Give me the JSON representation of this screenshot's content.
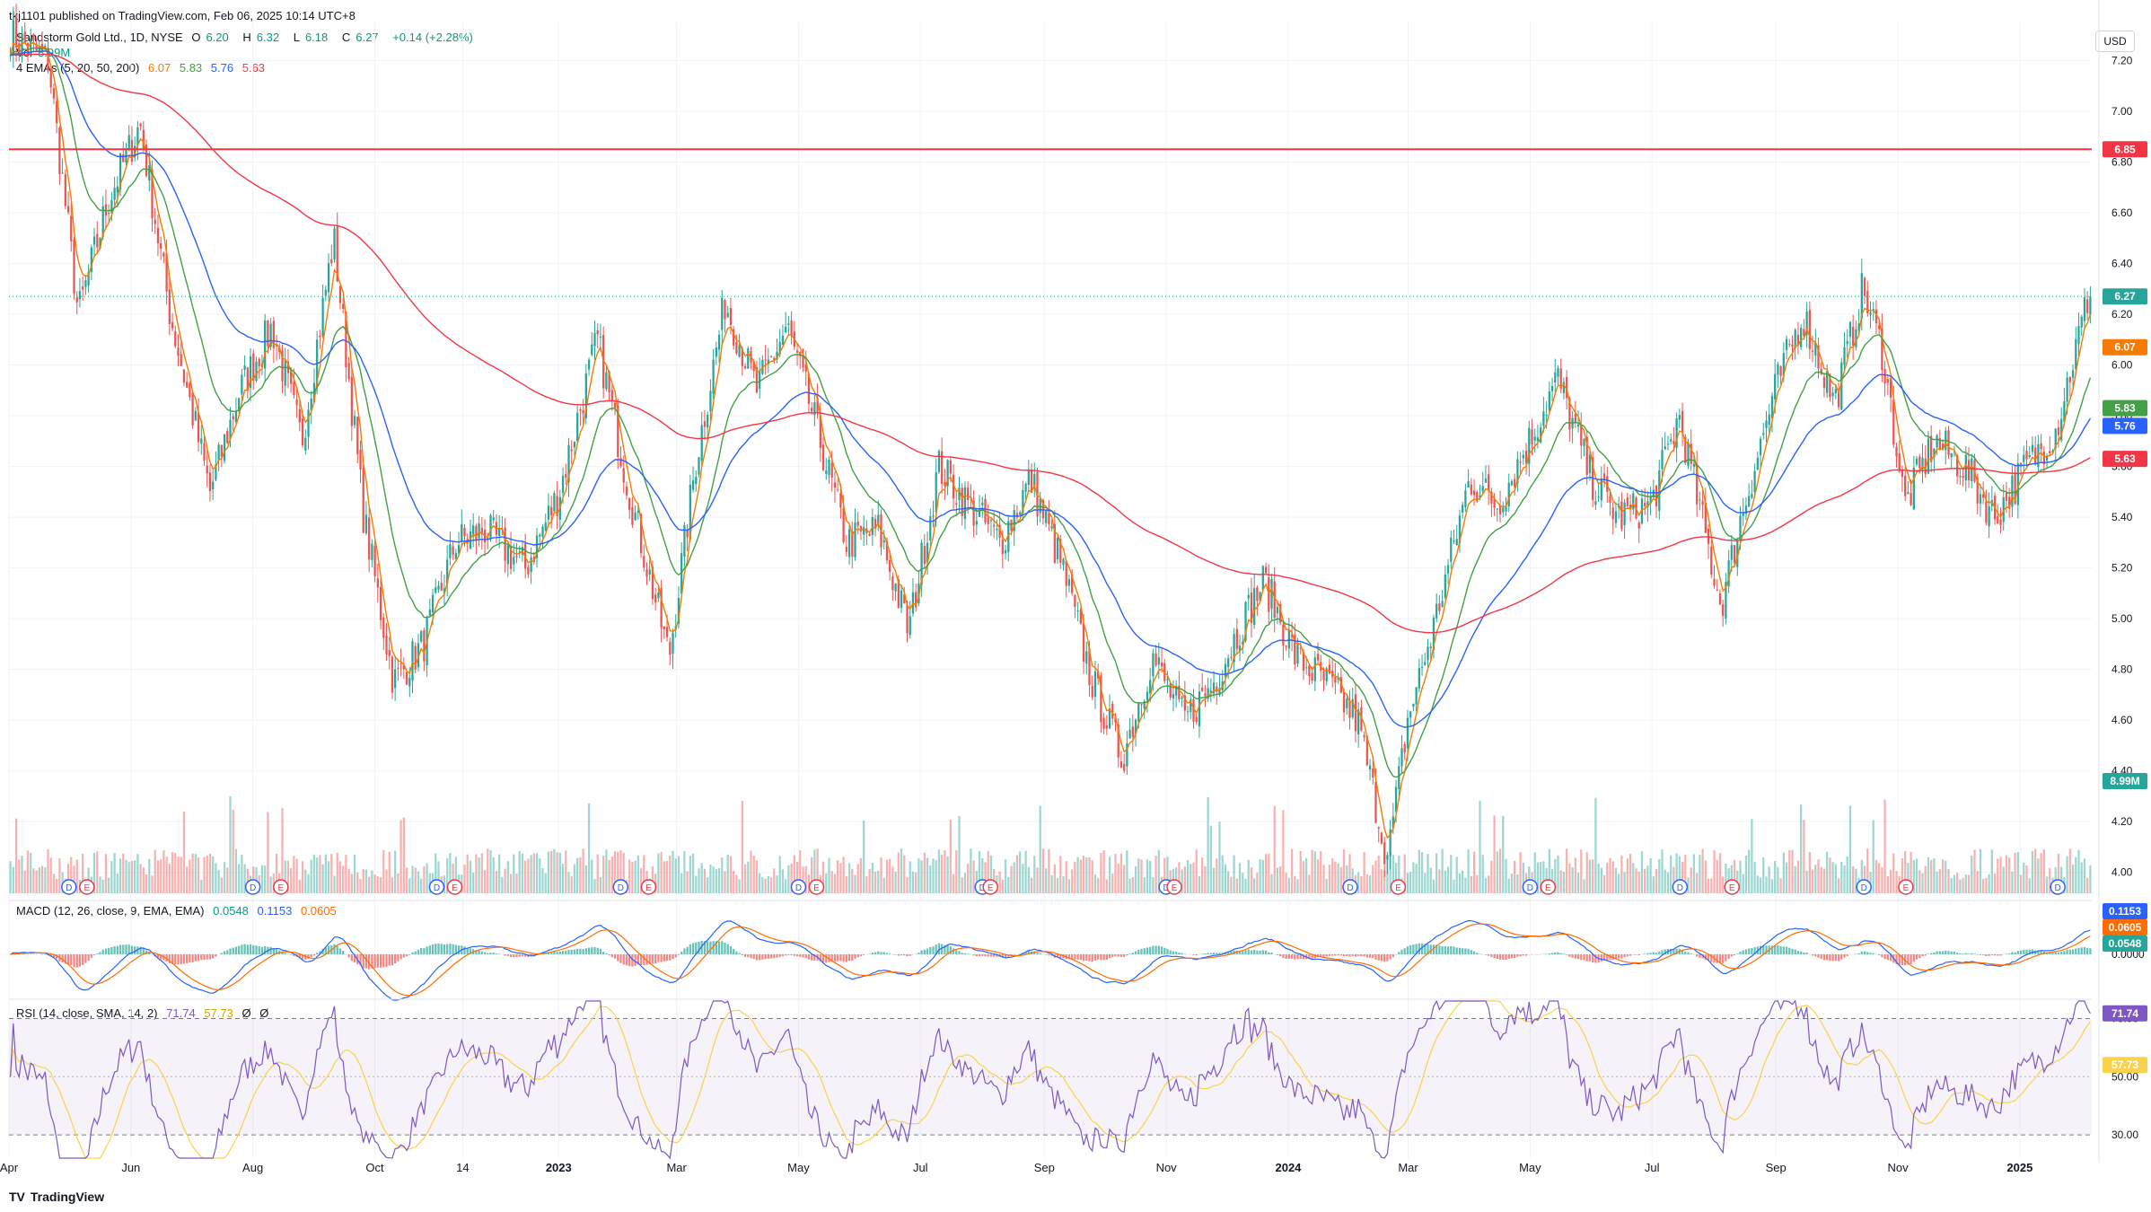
{
  "header": {
    "publish_line": "tkj1101 published on TradingView.com, Feb 06, 2025 10:14 UTC+8",
    "currency": "USD"
  },
  "symbol_legend": {
    "name": "Sandstorm Gold Ltd., 1D, NYSE",
    "o_label": "O",
    "o": "6.20",
    "h_label": "H",
    "h": "6.32",
    "l_label": "L",
    "l": "6.18",
    "c_label": "C",
    "c": "6.27",
    "change": "+0.14 (+2.28%)"
  },
  "volume_legend": {
    "label": "Vol",
    "value": "8.99M"
  },
  "ema_legend": {
    "label": "4 EMAs (5, 20, 50, 200)",
    "values": [
      "6.07",
      "5.83",
      "5.76",
      "5.63"
    ]
  },
  "macd_legend": {
    "label": "MACD (12, 26, close, 9, EMA, EMA)",
    "values": [
      "0.0548",
      "0.1153",
      "0.0605"
    ]
  },
  "rsi_legend": {
    "label": "RSI (14, close, SMA, 14, 2)",
    "values": [
      "71.74",
      "57.73",
      "Ø",
      "Ø"
    ]
  },
  "colors": {
    "up": "#26a69a",
    "down": "#ef5350",
    "ema5": "#f57c00",
    "ema20": "#43a047",
    "ema50": "#2962ff",
    "ema200": "#f23645",
    "hline": "#f23645",
    "macd": "#2962ff",
    "signal": "#ff6d00",
    "rsi": "#7e57c2",
    "rsi_ma": "#f9d34c"
  },
  "chart_data": {
    "type": "candlestick",
    "price_axis": {
      "ticks": [
        "7.20",
        "7.00",
        "6.80",
        "6.60",
        "6.40",
        "6.20",
        "6.00",
        "5.80",
        "5.60",
        "5.40",
        "5.20",
        "5.00",
        "4.80",
        "4.60",
        "4.40",
        "4.20",
        "4.00"
      ],
      "ylim": [
        3.9,
        7.35
      ]
    },
    "x_axis": {
      "labels": [
        "Apr",
        "Jun",
        "Aug",
        "Oct",
        "14",
        "2023",
        "Mar",
        "May",
        "Jul",
        "Sep",
        "Nov",
        "2024",
        "Mar",
        "May",
        "Jul",
        "Sep",
        "Nov",
        "2025"
      ]
    },
    "horizontal_line": {
      "value": 6.85,
      "label": "6.85"
    },
    "price_badges": [
      {
        "label": "6.27",
        "value": 6.27,
        "series": "close"
      },
      {
        "label": "6.07",
        "value": 6.07,
        "series": "ema5"
      },
      {
        "label": "5.83",
        "value": 5.83,
        "series": "ema20"
      },
      {
        "label": "5.76",
        "value": 5.76,
        "series": "ema50"
      },
      {
        "label": "5.63",
        "value": 5.63,
        "series": "ema200"
      },
      {
        "label": "8.99M",
        "value": 8.99,
        "series": "volume"
      }
    ],
    "price_path": [
      [
        "2022-04-01",
        7.3
      ],
      [
        "2022-04-20",
        7.2
      ],
      [
        "2022-05-05",
        6.2
      ],
      [
        "2022-05-20",
        6.65
      ],
      [
        "2022-06-05",
        6.95
      ],
      [
        "2022-06-20",
        6.2
      ],
      [
        "2022-07-10",
        5.5
      ],
      [
        "2022-07-25",
        5.9
      ],
      [
        "2022-08-10",
        6.15
      ],
      [
        "2022-08-25",
        5.7
      ],
      [
        "2022-09-10",
        6.5
      ],
      [
        "2022-09-25",
        5.4
      ],
      [
        "2022-10-10",
        4.75
      ],
      [
        "2022-10-25",
        4.9
      ],
      [
        "2022-11-10",
        5.3
      ],
      [
        "2022-11-25",
        5.35
      ],
      [
        "2022-12-15",
        5.2
      ],
      [
        "2023-01-01",
        5.5
      ],
      [
        "2023-01-20",
        6.1
      ],
      [
        "2023-02-05",
        5.5
      ],
      [
        "2023-02-25",
        4.85
      ],
      [
        "2023-03-10",
        5.6
      ],
      [
        "2023-03-25",
        6.25
      ],
      [
        "2023-04-10",
        5.9
      ],
      [
        "2023-04-25",
        6.15
      ],
      [
        "2023-05-10",
        5.75
      ],
      [
        "2023-05-25",
        5.3
      ],
      [
        "2023-06-10",
        5.35
      ],
      [
        "2023-06-25",
        4.95
      ],
      [
        "2023-07-10",
        5.6
      ],
      [
        "2023-07-25",
        5.45
      ],
      [
        "2023-08-10",
        5.3
      ],
      [
        "2023-08-25",
        5.55
      ],
      [
        "2023-09-10",
        5.2
      ],
      [
        "2023-09-25",
        4.75
      ],
      [
        "2023-10-10",
        4.45
      ],
      [
        "2023-10-25",
        4.85
      ],
      [
        "2023-11-10",
        4.6
      ],
      [
        "2023-11-25",
        4.75
      ],
      [
        "2023-12-10",
        5.0
      ],
      [
        "2023-12-20",
        5.15
      ],
      [
        "2024-01-05",
        4.85
      ],
      [
        "2024-01-20",
        4.75
      ],
      [
        "2024-02-05",
        4.6
      ],
      [
        "2024-02-20",
        4.05
      ],
      [
        "2024-03-01",
        4.6
      ],
      [
        "2024-03-15",
        5.0
      ],
      [
        "2024-04-01",
        5.55
      ],
      [
        "2024-04-15",
        5.45
      ],
      [
        "2024-05-01",
        5.7
      ],
      [
        "2024-05-15",
        5.95
      ],
      [
        "2024-06-01",
        5.55
      ],
      [
        "2024-06-15",
        5.4
      ],
      [
        "2024-07-01",
        5.45
      ],
      [
        "2024-07-15",
        5.8
      ],
      [
        "2024-08-05",
        5.05
      ],
      [
        "2024-08-15",
        5.4
      ],
      [
        "2024-09-01",
        5.9
      ],
      [
        "2024-09-15",
        6.2
      ],
      [
        "2024-10-01",
        5.85
      ],
      [
        "2024-10-15",
        6.3
      ],
      [
        "2024-10-25",
        6.05
      ],
      [
        "2024-11-05",
        5.45
      ],
      [
        "2024-11-20",
        5.7
      ],
      [
        "2024-12-05",
        5.6
      ],
      [
        "2024-12-20",
        5.4
      ],
      [
        "2025-01-05",
        5.6
      ],
      [
        "2025-01-20",
        5.75
      ],
      [
        "2025-02-05",
        6.27
      ]
    ],
    "emas": [
      {
        "name": "EMA 5",
        "key": "ema5",
        "last": 6.07
      },
      {
        "name": "EMA 20",
        "key": "ema20",
        "last": 5.83
      },
      {
        "name": "EMA 50",
        "key": "ema50",
        "last": 5.76
      },
      {
        "name": "EMA 200",
        "key": "ema200",
        "last": 5.63
      }
    ],
    "macd": {
      "axis_ticks": [
        "0.0000"
      ],
      "badges": [
        "0.1153",
        "0.0605",
        "0.0548"
      ],
      "values": {
        "macd": 0.1153,
        "signal": 0.0605,
        "hist": 0.0548
      }
    },
    "rsi": {
      "axis_ticks": [
        "70.00",
        "50.00",
        "30.00"
      ],
      "ylim": [
        22,
        76
      ],
      "bands": [
        70,
        30
      ],
      "badges": [
        "71.74",
        "57.73"
      ],
      "last": 71.74,
      "ma_last": 57.73
    },
    "event_markers": {
      "dividends": [
        "2022-05-01",
        "2022-08-01",
        "2022-11-01",
        "2023-02-01",
        "2023-05-01",
        "2023-08-01",
        "2023-11-01",
        "2024-02-01",
        "2024-05-01",
        "2024-07-15",
        "2024-10-15",
        "2025-01-20"
      ],
      "earnings": [
        "2022-05-10",
        "2022-08-15",
        "2022-11-10",
        "2023-02-15",
        "2023-05-10",
        "2023-08-05",
        "2023-11-05",
        "2024-02-25",
        "2024-05-10",
        "2024-08-10",
        "2024-11-05"
      ],
      "dividend_letter": "D",
      "earnings_letter": "E"
    }
  },
  "footer": {
    "brand": "TradingView"
  }
}
